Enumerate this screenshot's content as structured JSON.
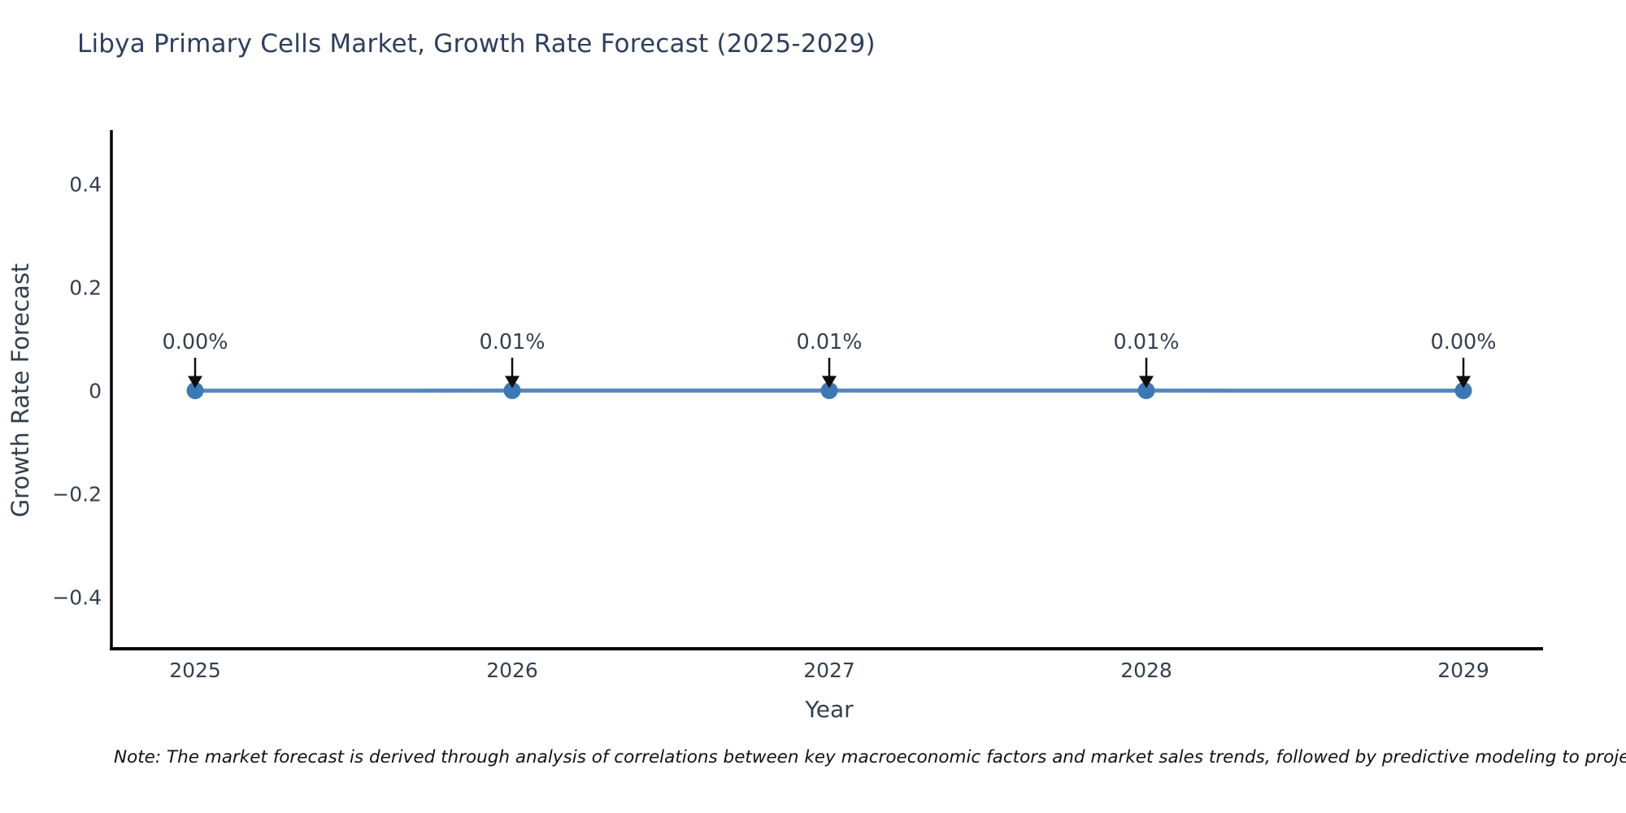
{
  "chart_data": {
    "type": "line",
    "title": "Libya Primary Cells Market, Growth Rate Forecast (2025-2029)",
    "xlabel": "Year",
    "ylabel": "Growth Rate Forecast",
    "x": [
      2025,
      2026,
      2027,
      2028,
      2029
    ],
    "series": [
      {
        "name": "Growth Rate Forecast",
        "values": [
          0.0,
          0.0001,
          0.0001,
          0.0001,
          0.0
        ]
      }
    ],
    "point_labels": [
      "0.00%",
      "0.01%",
      "0.01%",
      "0.01%",
      "0.00%"
    ],
    "ylim": [
      -0.5,
      0.5
    ],
    "yticks": [
      0.4,
      0.2,
      0,
      -0.2,
      -0.4
    ],
    "grid": false,
    "legend": "none",
    "colors": {
      "line": "#5589be",
      "marker": "#3c78b4",
      "axis": "#000000",
      "arrow": "#0d0d0d",
      "title_text": "#2d3f5e",
      "tick_text": "#33404f"
    }
  },
  "note": "Note: The market forecast is derived through analysis of correlations between key macroeconomic factors and market sales trends, followed by predictive modeling to project future sal"
}
